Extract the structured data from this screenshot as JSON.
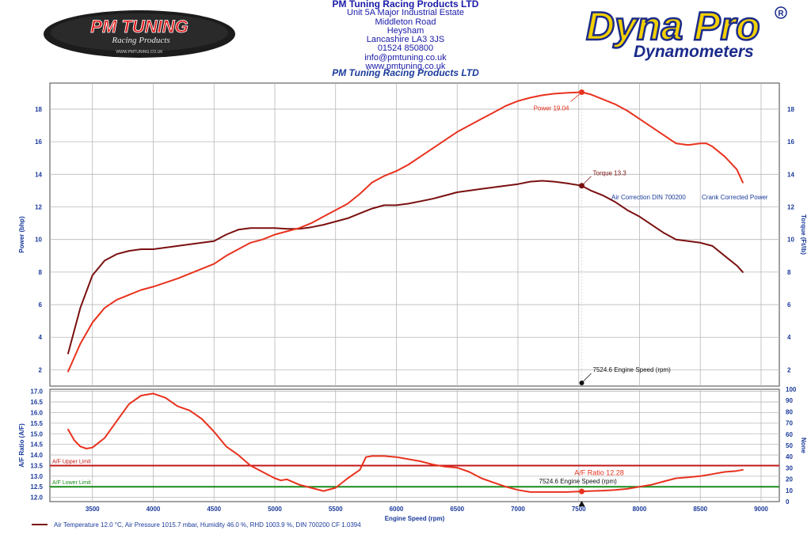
{
  "header": {
    "company": "PM Tuning Racing Products LTD",
    "address_lines": [
      "Unit 5A Major Industrial Estate",
      "Middleton Road",
      "Heysham",
      "Lancashire LA3 3JS",
      "01524 850800",
      "info@pmtuning.co.uk",
      "www.pmtuning.co.uk"
    ],
    "logo_left": {
      "main": "PM TUNING",
      "sub": "Racing Products",
      "url": "WWW.PMTUNING.CO.UK"
    },
    "logo_right": {
      "main": "Dyna Pro",
      "mark": "®",
      "sub": "Dynamometers"
    }
  },
  "colors": {
    "power": "#e8321e",
    "torque": "#7a1010",
    "afr": "#e8321e",
    "upper_limit": "#c01818",
    "lower_limit": "#1a8a1a",
    "axis_text": "#1a3a9a",
    "grid": "#b8b8b8"
  },
  "chart_data": [
    {
      "type": "line",
      "title": "PM Tuning Racing Products LTD",
      "xlabel": "",
      "ylabel": "Power (bhp)",
      "ylabel_right": "Torque (Ft/lb)",
      "xlim": [
        3150,
        9150
      ],
      "ylim": [
        1,
        19.6
      ],
      "yticks": [
        2,
        4,
        6,
        8,
        10,
        12,
        14,
        16,
        18
      ],
      "grid": true,
      "annotations": {
        "power": "Power 19.04",
        "torque": "Torque 13.3",
        "cursor": "7524.6 Engine Speed (rpm)",
        "correction": "Air Correction DIN 700200",
        "mode": "Crank Corrected Power"
      },
      "cursor_x": 7524.6,
      "series": [
        {
          "key": "power",
          "x": [
            3300,
            3400,
            3500,
            3600,
            3700,
            3800,
            3900,
            4000,
            4200,
            4300,
            4400,
            4500,
            4600,
            4700,
            4800,
            4900,
            5000,
            5100,
            5200,
            5300,
            5400,
            5500,
            5600,
            5700,
            5800,
            5900,
            6000,
            6100,
            6200,
            6300,
            6400,
            6500,
            6600,
            6700,
            6800,
            6900,
            7000,
            7100,
            7200,
            7300,
            7400,
            7524.6,
            7600,
            7700,
            7800,
            7900,
            8000,
            8100,
            8200,
            8300,
            8400,
            8500,
            8550,
            8600,
            8700,
            8800,
            8850
          ],
          "y": [
            1.9,
            3.6,
            4.9,
            5.8,
            6.3,
            6.6,
            6.9,
            7.1,
            7.6,
            7.9,
            8.2,
            8.5,
            9.0,
            9.4,
            9.8,
            10.0,
            10.3,
            10.5,
            10.7,
            11.0,
            11.4,
            11.8,
            12.2,
            12.8,
            13.5,
            13.9,
            14.2,
            14.6,
            15.1,
            15.6,
            16.1,
            16.6,
            17.0,
            17.4,
            17.8,
            18.2,
            18.5,
            18.7,
            18.85,
            18.95,
            19.0,
            19.04,
            18.9,
            18.6,
            18.3,
            17.9,
            17.4,
            16.9,
            16.4,
            15.9,
            15.8,
            15.9,
            15.9,
            15.7,
            15.1,
            14.3,
            13.5
          ]
        },
        {
          "key": "torque",
          "x": [
            3300,
            3400,
            3500,
            3600,
            3700,
            3800,
            3900,
            4000,
            4200,
            4400,
            4500,
            4600,
            4700,
            4800,
            4900,
            5000,
            5100,
            5200,
            5300,
            5400,
            5500,
            5600,
            5700,
            5800,
            5900,
            6000,
            6100,
            6200,
            6300,
            6400,
            6500,
            6600,
            6700,
            6800,
            6900,
            7000,
            7100,
            7200,
            7300,
            7400,
            7524.6,
            7600,
            7700,
            7800,
            7900,
            8000,
            8100,
            8200,
            8300,
            8400,
            8500,
            8600,
            8700,
            8800,
            8850
          ],
          "y": [
            3.0,
            5.8,
            7.8,
            8.7,
            9.1,
            9.3,
            9.4,
            9.4,
            9.6,
            9.8,
            9.9,
            10.3,
            10.6,
            10.7,
            10.7,
            10.7,
            10.65,
            10.65,
            10.75,
            10.9,
            11.1,
            11.3,
            11.6,
            11.9,
            12.1,
            12.1,
            12.2,
            12.35,
            12.5,
            12.7,
            12.9,
            13.0,
            13.1,
            13.2,
            13.3,
            13.4,
            13.55,
            13.6,
            13.55,
            13.45,
            13.3,
            13.0,
            12.7,
            12.3,
            11.8,
            11.4,
            10.9,
            10.4,
            10.0,
            9.9,
            9.8,
            9.6,
            9.0,
            8.4,
            8.0
          ]
        }
      ]
    },
    {
      "type": "line",
      "xlabel": "Engine Speed (rpm)",
      "ylabel": "A/F Ratio (A/F)",
      "ylabel_right": "None",
      "xlim": [
        3150,
        9150
      ],
      "ylim": [
        11.8,
        17.1
      ],
      "yticks": [
        12.0,
        12.5,
        13.0,
        13.5,
        14.0,
        14.5,
        15.0,
        15.5,
        16.0,
        16.5,
        17.0
      ],
      "ylim_right": [
        0,
        100
      ],
      "yticks_right": [
        0,
        10,
        20,
        30,
        40,
        50,
        60,
        70,
        80,
        90,
        100
      ],
      "xticks": [
        3500,
        4000,
        4500,
        5000,
        5500,
        6000,
        6500,
        7000,
        7500,
        8000,
        8500,
        9000
      ],
      "grid": true,
      "limits": {
        "upper": 13.5,
        "upper_label": "A/F Upper Limit",
        "lower": 12.5,
        "lower_label": "A/F Lower Limit"
      },
      "annotations": {
        "afr": "A/F Ratio 12.28",
        "cursor": "7524.6 Engine Speed (rpm)"
      },
      "cursor_x": 7524.6,
      "series": [
        {
          "key": "afr",
          "x": [
            3300,
            3350,
            3400,
            3450,
            3500,
            3600,
            3700,
            3800,
            3900,
            4000,
            4100,
            4200,
            4300,
            4400,
            4500,
            4600,
            4700,
            4800,
            4900,
            5000,
            5050,
            5100,
            5200,
            5300,
            5400,
            5500,
            5600,
            5700,
            5750,
            5800,
            5900,
            6000,
            6100,
            6200,
            6300,
            6400,
            6500,
            6600,
            6700,
            6800,
            6900,
            7000,
            7100,
            7200,
            7300,
            7400,
            7524.6,
            7600,
            7700,
            7800,
            7900,
            8000,
            8100,
            8200,
            8300,
            8400,
            8500,
            8600,
            8700,
            8800,
            8850
          ],
          "y": [
            15.2,
            14.7,
            14.4,
            14.3,
            14.35,
            14.8,
            15.6,
            16.4,
            16.8,
            16.9,
            16.7,
            16.3,
            16.1,
            15.7,
            15.1,
            14.4,
            14.0,
            13.5,
            13.2,
            12.9,
            12.8,
            12.85,
            12.6,
            12.45,
            12.3,
            12.45,
            12.9,
            13.3,
            13.9,
            13.95,
            13.95,
            13.9,
            13.8,
            13.7,
            13.55,
            13.45,
            13.4,
            13.2,
            12.9,
            12.7,
            12.5,
            12.35,
            12.25,
            12.25,
            12.25,
            12.25,
            12.28,
            12.3,
            12.32,
            12.35,
            12.4,
            12.5,
            12.6,
            12.75,
            12.9,
            12.95,
            13.0,
            13.1,
            13.2,
            13.25,
            13.3
          ]
        }
      ]
    }
  ],
  "legend": {
    "text": "Air Temperature 12.0 °C, Air Pressure 1015.7 mbar, Humidity 46.0 %, RHD 1003.9 %, DIN 700200 CF 1.0394"
  }
}
